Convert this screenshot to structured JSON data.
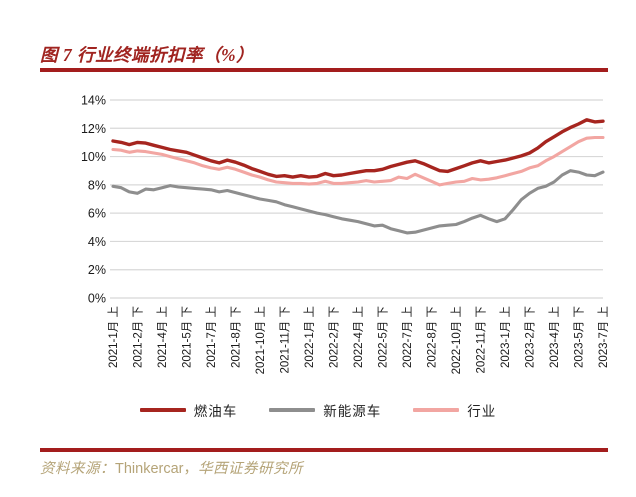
{
  "header": {
    "title_note": "report figure"
  },
  "footer": {
    "prefix": "资料来源：",
    "source": "Thinkercar，",
    "org": "华西证券研究所"
  },
  "colors": {
    "accent_rule": "#A31D1D",
    "title_text": "#A02420",
    "source_text": "#B5A478",
    "grid_line": "#D8D8D8",
    "tick_text": "#1A1A1A",
    "fuel_line": "#A6251F",
    "nev_line": "#8E8E8E",
    "industry_line": "#F2A6A2"
  },
  "chart_data": {
    "type": "line",
    "title": "图 7 行业终端折扣率（%）",
    "xlabel": "",
    "ylabel": "",
    "ylim": [
      0,
      14
    ],
    "ytick_step": 2,
    "y_tick_labels": [
      "0%",
      "2%",
      "4%",
      "6%",
      "8%",
      "10%",
      "12%",
      "14%"
    ],
    "grid": "horizontal",
    "legend_position": "bottom",
    "x_tick_every": 3,
    "n_points": 61,
    "x_tick_labels": [
      "2021-1月 上",
      "2021-2月 下",
      "2021-4月 上",
      "2021-5月 下",
      "2021-7月 上",
      "2021-8月 下",
      "2021-10月 上",
      "2021-11月 下",
      "2022-1月 上",
      "2022-2月 下",
      "2022-4月 上",
      "2022-5月 下",
      "2022-7月 上",
      "2022-8月 下",
      "2022-10月 上",
      "2022-11月 下",
      "2023-1月 上",
      "2023-2月 下",
      "2023-4月 上",
      "2023-5月 下",
      "2023-7月 上"
    ],
    "series": [
      {
        "name": "燃油车",
        "color": "#A6251F",
        "stroke_width": 3.4,
        "values": [
          11.1,
          11.0,
          10.85,
          11.0,
          10.95,
          10.8,
          10.65,
          10.5,
          10.4,
          10.3,
          10.1,
          9.9,
          9.7,
          9.55,
          9.75,
          9.6,
          9.4,
          9.15,
          8.95,
          8.75,
          8.6,
          8.65,
          8.55,
          8.65,
          8.55,
          8.6,
          8.8,
          8.65,
          8.7,
          8.8,
          8.9,
          9.0,
          9.0,
          9.1,
          9.3,
          9.45,
          9.6,
          9.7,
          9.5,
          9.25,
          9.0,
          8.95,
          9.15,
          9.35,
          9.55,
          9.7,
          9.55,
          9.65,
          9.75,
          9.9,
          10.05,
          10.25,
          10.6,
          11.05,
          11.4,
          11.75,
          12.05,
          12.3,
          12.6,
          12.45,
          12.5
        ]
      },
      {
        "name": "新能源车",
        "color": "#8E8E8E",
        "stroke_width": 3.1,
        "values": [
          7.9,
          7.8,
          7.5,
          7.4,
          7.7,
          7.65,
          7.8,
          7.95,
          7.85,
          7.8,
          7.75,
          7.7,
          7.65,
          7.5,
          7.6,
          7.45,
          7.3,
          7.15,
          7.0,
          6.9,
          6.8,
          6.6,
          6.45,
          6.3,
          6.15,
          6.0,
          5.9,
          5.75,
          5.6,
          5.5,
          5.4,
          5.25,
          5.1,
          5.15,
          4.9,
          4.75,
          4.6,
          4.65,
          4.8,
          4.95,
          5.1,
          5.15,
          5.2,
          5.4,
          5.65,
          5.85,
          5.6,
          5.4,
          5.6,
          6.25,
          6.95,
          7.4,
          7.75,
          7.9,
          8.2,
          8.7,
          9.0,
          8.9,
          8.7,
          8.65,
          8.9
        ]
      },
      {
        "name": "行业",
        "color": "#F2A6A2",
        "stroke_width": 3.1,
        "values": [
          10.5,
          10.45,
          10.3,
          10.4,
          10.35,
          10.25,
          10.15,
          10.0,
          9.85,
          9.7,
          9.55,
          9.35,
          9.2,
          9.1,
          9.25,
          9.1,
          8.9,
          8.7,
          8.55,
          8.35,
          8.2,
          8.15,
          8.1,
          8.1,
          8.05,
          8.1,
          8.25,
          8.1,
          8.1,
          8.15,
          8.2,
          8.3,
          8.2,
          8.25,
          8.3,
          8.55,
          8.45,
          8.75,
          8.5,
          8.25,
          8.0,
          8.1,
          8.2,
          8.25,
          8.45,
          8.35,
          8.4,
          8.5,
          8.65,
          8.8,
          8.95,
          9.2,
          9.35,
          9.7,
          10.0,
          10.35,
          10.7,
          11.05,
          11.3,
          11.35,
          11.35
        ]
      }
    ]
  }
}
